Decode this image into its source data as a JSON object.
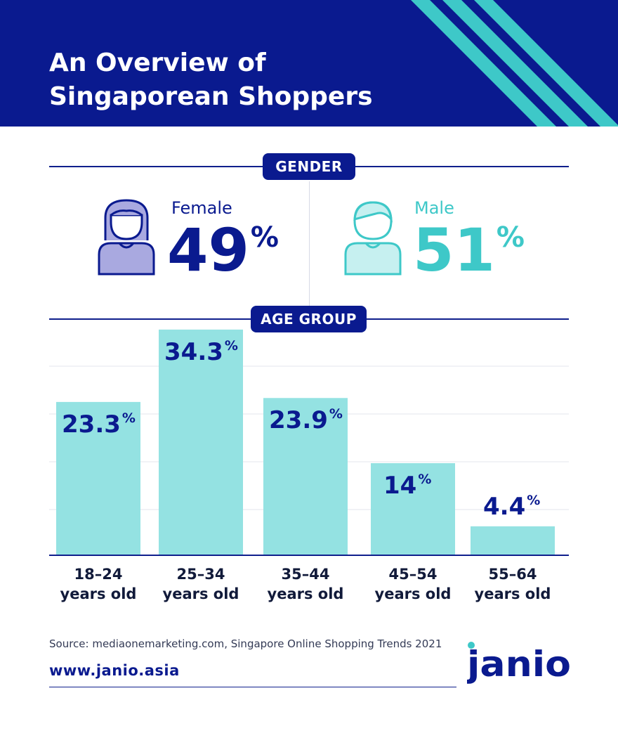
{
  "title_line1": "An Overview of",
  "title_line2": "Singaporean Shoppers",
  "gender": {
    "heading": "GENDER",
    "female": {
      "label": "Female",
      "value": "49",
      "unit": "%"
    },
    "male": {
      "label": "Male",
      "value": "51",
      "unit": "%"
    }
  },
  "age_heading": "AGE GROUP",
  "chart_data": {
    "type": "bar",
    "title": "AGE GROUP",
    "categories": [
      "18–24 years old",
      "25–34 years old",
      "35–44 years old",
      "45–54 years old",
      "55–64 years old"
    ],
    "category_lines": [
      [
        "18–24",
        "years old"
      ],
      [
        "25–34",
        "years old"
      ],
      [
        "35–44",
        "years old"
      ],
      [
        "45–54",
        "years old"
      ],
      [
        "55–64",
        "years old"
      ]
    ],
    "values": [
      23.3,
      34.3,
      23.9,
      14,
      4.4
    ],
    "value_labels": [
      "23.3",
      "34.3",
      "23.9",
      "14",
      "4.4"
    ],
    "unit": "%",
    "ylim": [
      0,
      36
    ],
    "grid": true,
    "xlabel": "",
    "ylabel": ""
  },
  "source": "Source: mediaonemarketing.com, Singapore Online Shopping Trends 2021",
  "url": "www.janio.asia",
  "logo_text": "janio",
  "colors": {
    "navy": "#0a1a8f",
    "teal": "#3ec8c8",
    "bar": "#94e2e2",
    "female_fill": "#a9a9e0"
  }
}
